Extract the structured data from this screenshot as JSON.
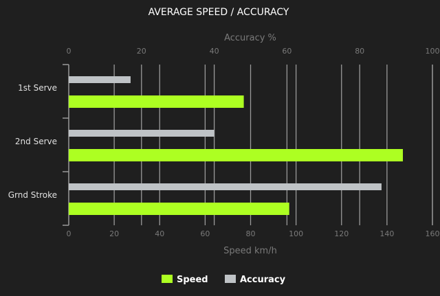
{
  "chart_data": {
    "type": "bar",
    "orientation": "horizontal",
    "title": "AVERAGE SPEED / ACCURACY",
    "categories": [
      "1st Serve",
      "2nd Serve",
      "Grnd Stroke"
    ],
    "series": [
      {
        "name": "Speed",
        "axis": "bottom",
        "color": "#adff22",
        "values": [
          77,
          147,
          97
        ]
      },
      {
        "name": "Accuracy",
        "axis": "top",
        "color": "#bfc3c6",
        "values": [
          17,
          40,
          86
        ]
      }
    ],
    "x_bottom": {
      "label": "Speed km/h",
      "range": [
        0,
        160
      ],
      "ticks": [
        0,
        20,
        40,
        60,
        80,
        100,
        120,
        140,
        160
      ]
    },
    "x_top": {
      "label": "Accuracy %",
      "range": [
        0,
        100
      ],
      "ticks": [
        0,
        20,
        40,
        60,
        80,
        100
      ]
    },
    "grid": true,
    "legend": "bottom",
    "background": "#1f1f1f"
  }
}
